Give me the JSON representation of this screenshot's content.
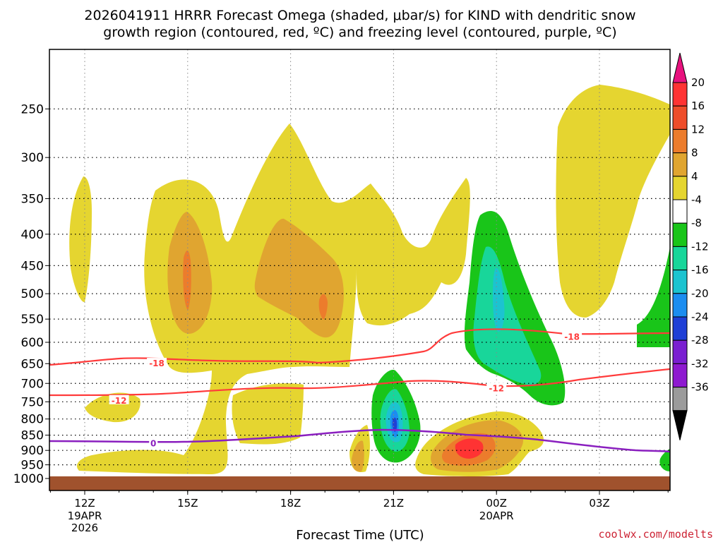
{
  "title": {
    "line1": "2026041911 HRRR Forecast Omega (shaded, μbar/s) for KIND with dendritic snow",
    "line2": "growth region (contoured, red, ºC) and freezing level (contoured, purple, ºC)"
  },
  "credit": "coolwx.com/modelts",
  "chart_data": {
    "type": "heatmap",
    "xlabel": "Forecast Time (UTC)",
    "ylabel": "",
    "x_ticks": [
      {
        "label": "12Z",
        "sub": [
          "19APR",
          "2026"
        ],
        "hour": 0
      },
      {
        "label": "15Z",
        "sub": [],
        "hour": 3
      },
      {
        "label": "18Z",
        "sub": [],
        "hour": 6
      },
      {
        "label": "21Z",
        "sub": [],
        "hour": 9
      },
      {
        "label": "00Z",
        "sub": [
          "20APR"
        ],
        "hour": 12
      },
      {
        "label": "03Z",
        "sub": [],
        "hour": 15
      }
    ],
    "xlim": [
      -1,
      17
    ],
    "y_ticks": [
      250,
      300,
      350,
      400,
      450,
      500,
      550,
      600,
      650,
      700,
      750,
      800,
      850,
      900,
      950,
      1000
    ],
    "ylim": [
      200,
      1000
    ],
    "y_scale": "log-pressure",
    "grid": true,
    "colorbar": {
      "labels": [
        "20",
        "16",
        "12",
        "8",
        "4",
        "-4",
        "-8",
        "-12",
        "-16",
        "-20",
        "-24",
        "-28",
        "-32",
        "-36"
      ],
      "colors": [
        "#e8127e",
        "#ff3333",
        "#ee4d2a",
        "#ec7c2c",
        "#e0a530",
        "#e5d530",
        "#ffffff",
        "#19c519",
        "#18d69a",
        "#1cc3d0",
        "#1c8df0",
        "#1f3fd6",
        "#7a1fd1",
        "#8e1ad0",
        "#9b9b9b",
        "#000000"
      ]
    },
    "ground_color": "#a0522d",
    "contours": {
      "dendritic_color": "#ff3b3b",
      "freezing_color": "#8a1fbf",
      "labels": [
        {
          "text": "-18",
          "hour": 2.1,
          "p": 648,
          "type": "dendritic"
        },
        {
          "text": "-18",
          "hour": 14.2,
          "p": 587,
          "type": "dendritic"
        },
        {
          "text": "-12",
          "hour": 1.0,
          "p": 745,
          "type": "dendritic"
        },
        {
          "text": "-12",
          "hour": 12.0,
          "p": 712,
          "type": "dendritic"
        },
        {
          "text": "0",
          "hour": 2.0,
          "p": 875,
          "type": "freezing"
        }
      ]
    }
  }
}
